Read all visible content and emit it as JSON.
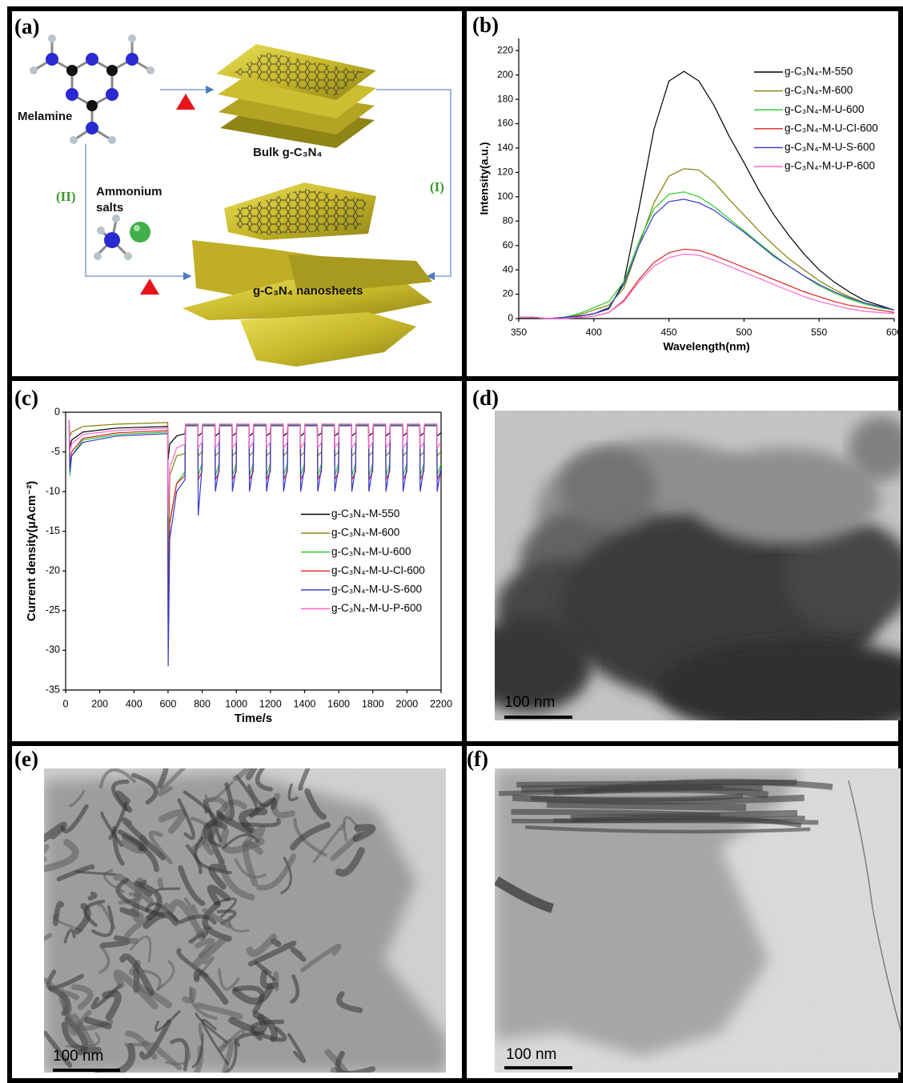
{
  "panels": {
    "a": {
      "label": "(a)",
      "melamine": "Melamine",
      "bulk": "Bulk g-C₃N₄",
      "route_2": "(II)",
      "ammonium": [
        "Ammonium",
        "salts"
      ],
      "route_1": "(I)",
      "nanosheets": "g-C₃N₄ nanosheets"
    },
    "b": {
      "label": "(b)"
    },
    "c": {
      "label": "(c)"
    },
    "d": {
      "label": "(d)",
      "scale_bar": "100 nm"
    },
    "e": {
      "label": "(e)",
      "scale_bar": "100 nm"
    },
    "f": {
      "label": "(f)",
      "scale_bar": "100 nm"
    }
  },
  "chart_data": [
    {
      "type": "line",
      "xlabel": "Wavelength(nm)",
      "ylabel": "Intensity(a.u.)",
      "x": [
        350,
        360,
        370,
        380,
        390,
        400,
        410,
        420,
        430,
        440,
        450,
        460,
        470,
        480,
        490,
        500,
        510,
        520,
        530,
        540,
        550,
        560,
        570,
        580,
        590,
        600
      ],
      "series": [
        {
          "name": "g-C₃N₄-M-550",
          "color": "#000000",
          "values": [
            1,
            1,
            0,
            1,
            2,
            4,
            8,
            30,
            90,
            155,
            195,
            203,
            195,
            175,
            150,
            128,
            105,
            85,
            68,
            53,
            40,
            30,
            22,
            15,
            11,
            7
          ]
        },
        {
          "name": "g-C₃N₄-M-600",
          "color": "#808000",
          "values": [
            1,
            1,
            0,
            1,
            3,
            7,
            11,
            25,
            60,
            95,
            117,
            123,
            122,
            112,
            98,
            85,
            72,
            60,
            49,
            40,
            31,
            24,
            18,
            13,
            10,
            7
          ]
        },
        {
          "name": "g-C₃N₄-M-U-600",
          "color": "#22cc22",
          "values": [
            1,
            1,
            0,
            1,
            4,
            9,
            14,
            30,
            63,
            90,
            102,
            104,
            100,
            92,
            82,
            72,
            62,
            52,
            43,
            35,
            27,
            21,
            16,
            12,
            9,
            7
          ]
        },
        {
          "name": "g-C₃N₄-M-U-Cl-600",
          "color": "#e02020",
          "values": [
            1,
            1,
            0,
            0,
            1,
            2,
            5,
            15,
            32,
            46,
            54,
            57,
            56,
            52,
            47,
            42,
            37,
            32,
            27,
            22,
            18,
            14,
            11,
            9,
            7,
            5
          ]
        },
        {
          "name": "g-C₃N₄-M-U-S-600",
          "color": "#3535cc",
          "values": [
            1,
            1,
            0,
            1,
            2,
            4,
            9,
            28,
            60,
            85,
            96,
            98,
            95,
            89,
            80,
            71,
            61,
            51,
            43,
            35,
            28,
            22,
            17,
            13,
            10,
            7
          ]
        },
        {
          "name": "g-C₃N₄-M-U-P-600",
          "color": "#ff66cc",
          "values": [
            1,
            1,
            0,
            0,
            1,
            2,
            5,
            14,
            30,
            43,
            50,
            53,
            52,
            48,
            43,
            38,
            33,
            28,
            23,
            18,
            14,
            11,
            8,
            6,
            5,
            4
          ]
        }
      ],
      "xlim": [
        350,
        600
      ],
      "ylim": [
        0,
        230
      ],
      "xticks": [
        350,
        400,
        450,
        500,
        550,
        600
      ],
      "yticks": [
        0,
        20,
        40,
        60,
        80,
        100,
        120,
        140,
        160,
        180,
        200,
        220
      ],
      "legend": "upper right",
      "grid": false
    },
    {
      "type": "line",
      "xlabel": "Time/s",
      "ylabel": "Current density(μAcm⁻²)",
      "x": [
        20,
        25,
        35,
        100,
        300,
        598,
        601,
        610,
        650,
        699,
        702,
        775,
        777,
        799,
        802,
        875,
        877,
        899,
        902,
        975,
        977,
        999,
        1002,
        1075,
        1077,
        1099,
        1102,
        1175,
        1177,
        1199,
        1202,
        1275,
        1277,
        1299,
        1302,
        1375,
        1377,
        1399,
        1402,
        1475,
        1477,
        1499,
        1502,
        1575,
        1577,
        1599,
        1602,
        1675,
        1677,
        1699,
        1702,
        1775,
        1777,
        1799,
        1802,
        1875,
        1877,
        1899,
        1902,
        1975,
        1977,
        1999,
        2002,
        2075,
        2077,
        2099,
        2102,
        2175,
        2177,
        2199
      ],
      "series": [
        {
          "name": "g-C₃N₄-M-550",
          "color": "#000000",
          "values": [
            -1,
            -4.5,
            -3.5,
            -2.5,
            -2,
            -1.8,
            -6,
            -4,
            -3,
            -2.7,
            -1.6,
            -1.6,
            -3,
            -2.6,
            -1.6,
            -1.6,
            -3,
            -2.6,
            -1.6,
            -1.6,
            -3,
            -2.6,
            -1.6,
            -1.6,
            -3,
            -2.6,
            -1.6,
            -1.6,
            -3,
            -2.6,
            -1.6,
            -1.6,
            -3,
            -2.6,
            -1.6,
            -1.6,
            -3,
            -2.6,
            -1.6,
            -1.6,
            -3,
            -2.6,
            -1.6,
            -1.6,
            -3,
            -2.6,
            -1.6,
            -1.6,
            -3,
            -2.6,
            -1.6,
            -1.6,
            -3,
            -2.6,
            -1.6,
            -1.6,
            -3,
            -2.6,
            -1.6,
            -1.6,
            -3,
            -2.6,
            -1.6,
            -1.6,
            -3,
            -2.6,
            -1.6,
            -1.6,
            -3,
            -2.6
          ]
        },
        {
          "name": "g-C₃N₄-M-600",
          "color": "#808000",
          "values": [
            -1,
            -3,
            -2.5,
            -1.8,
            -1.5,
            -1.3,
            -28,
            -8,
            -5.5,
            -5.2,
            -1.5,
            -1.5,
            -5.5,
            -5,
            -1.5,
            -1.5,
            -5.5,
            -5,
            -1.5,
            -1.5,
            -5.5,
            -5,
            -1.5,
            -1.5,
            -5.5,
            -5,
            -1.5,
            -1.5,
            -5.5,
            -5,
            -1.5,
            -1.5,
            -5.5,
            -5,
            -1.5,
            -1.5,
            -5.5,
            -5,
            -1.5,
            -1.5,
            -5.5,
            -5,
            -1.5,
            -1.5,
            -5.5,
            -5,
            -1.5,
            -1.5,
            -5.5,
            -5,
            -1.5,
            -1.5,
            -5.5,
            -5,
            -1.5,
            -1.5,
            -5.5,
            -5,
            -1.5,
            -1.5,
            -5.5,
            -5,
            -1.5,
            -1.5,
            -5.5,
            -5,
            -1.5,
            -1.5,
            -5.5,
            -5
          ]
        },
        {
          "name": "g-C₃N₄-M-U-600",
          "color": "#22cc22",
          "values": [
            -1,
            -8,
            -5.5,
            -3.5,
            -2.8,
            -2.5,
            -28,
            -14,
            -9,
            -7.5,
            -1.6,
            -1.6,
            -8,
            -6.5,
            -1.6,
            -1.6,
            -8,
            -6.5,
            -1.6,
            -1.6,
            -8,
            -6.5,
            -1.6,
            -1.6,
            -8,
            -6.5,
            -1.6,
            -1.6,
            -8,
            -6.5,
            -1.6,
            -1.6,
            -8,
            -6.5,
            -1.6,
            -1.6,
            -8,
            -6.5,
            -1.6,
            -1.6,
            -8,
            -6.5,
            -1.6,
            -1.6,
            -8,
            -6.5,
            -1.6,
            -1.6,
            -8,
            -6.5,
            -1.6,
            -1.6,
            -8,
            -6.5,
            -1.6,
            -1.6,
            -8,
            -6.5,
            -1.6,
            -1.6,
            -8,
            -6.5,
            -1.6,
            -1.6,
            -8,
            -6.5,
            -1.6,
            -1.6,
            -8,
            -6.5
          ]
        },
        {
          "name": "g-C₃N₄-M-U-Cl-600",
          "color": "#e02020",
          "values": [
            -1,
            -7,
            -5,
            -3.3,
            -2.6,
            -2.3,
            -29,
            -14,
            -9,
            -8,
            -1.7,
            -1.7,
            -8.5,
            -7.5,
            -1.7,
            -1.7,
            -8.5,
            -7.5,
            -1.7,
            -1.7,
            -8.5,
            -7.5,
            -1.7,
            -1.7,
            -8.5,
            -7.5,
            -1.7,
            -1.7,
            -8.5,
            -7.5,
            -1.7,
            -1.7,
            -8.5,
            -7.5,
            -1.7,
            -1.7,
            -8.5,
            -7.5,
            -1.7,
            -1.7,
            -8.5,
            -7.5,
            -1.7,
            -1.7,
            -8.5,
            -7.5,
            -1.7,
            -1.7,
            -8.5,
            -7.5,
            -1.7,
            -1.7,
            -8.5,
            -7.5,
            -1.7,
            -1.7,
            -8.5,
            -7.5,
            -1.7,
            -1.7,
            -8.5,
            -7.5,
            -1.7,
            -1.7,
            -8.5,
            -7.5,
            -1.7,
            -1.7,
            -8.5,
            -7.5
          ]
        },
        {
          "name": "g-C₃N₄-M-U-S-600",
          "color": "#3535cc",
          "values": [
            -1,
            -7.5,
            -5.5,
            -3.8,
            -3,
            -2.7,
            -32,
            -16,
            -10,
            -8.5,
            -1.7,
            -1.7,
            -13,
            -7,
            -1.7,
            -1.7,
            -10,
            -7,
            -1.7,
            -1.7,
            -10,
            -7,
            -1.7,
            -1.7,
            -10,
            -7,
            -1.7,
            -1.7,
            -10,
            -7,
            -1.7,
            -1.7,
            -10,
            -7,
            -1.7,
            -1.7,
            -10,
            -7,
            -1.7,
            -1.7,
            -10,
            -7,
            -1.7,
            -1.7,
            -10,
            -7,
            -1.7,
            -1.7,
            -10,
            -7,
            -1.7,
            -1.7,
            -10,
            -7,
            -1.7,
            -1.7,
            -10,
            -7,
            -1.7,
            -1.7,
            -10,
            -7,
            -1.7,
            -1.7,
            -10,
            -7,
            -1.7,
            -1.7,
            -10,
            -7
          ]
        },
        {
          "name": "g-C₃N₄-M-U-P-600",
          "color": "#ff66cc",
          "values": [
            -1,
            -5,
            -4,
            -2.8,
            -2.3,
            -2,
            -13,
            -7,
            -4.5,
            -4,
            -1.5,
            -1.5,
            -4.5,
            -3.8,
            -1.5,
            -1.5,
            -4.5,
            -3.8,
            -1.5,
            -1.5,
            -4.5,
            -3.8,
            -1.5,
            -1.5,
            -4.5,
            -3.8,
            -1.5,
            -1.5,
            -4.5,
            -3.8,
            -1.5,
            -1.5,
            -4.5,
            -3.8,
            -1.5,
            -1.5,
            -4.5,
            -3.8,
            -1.5,
            -1.5,
            -4.5,
            -3.8,
            -1.5,
            -1.5,
            -4.5,
            -3.8,
            -1.5,
            -1.5,
            -4.5,
            -3.8,
            -1.5,
            -1.5,
            -4.5,
            -3.8,
            -1.5,
            -1.5,
            -4.5,
            -3.8,
            -1.5,
            -1.5,
            -4.5,
            -3.8,
            -1.5,
            -1.5,
            -4.5,
            -3.8,
            -1.5,
            -1.5,
            -4.5,
            -3.8
          ]
        }
      ],
      "xlim": [
        0,
        2200
      ],
      "ylim": [
        -35,
        0
      ],
      "xticks": [
        0,
        200,
        400,
        600,
        800,
        1000,
        1200,
        1400,
        1600,
        1800,
        2000,
        2200
      ],
      "yticks": [
        0,
        -5,
        -10,
        -15,
        -20,
        -25,
        -30,
        -35
      ],
      "legend": "center right",
      "grid": false
    }
  ]
}
